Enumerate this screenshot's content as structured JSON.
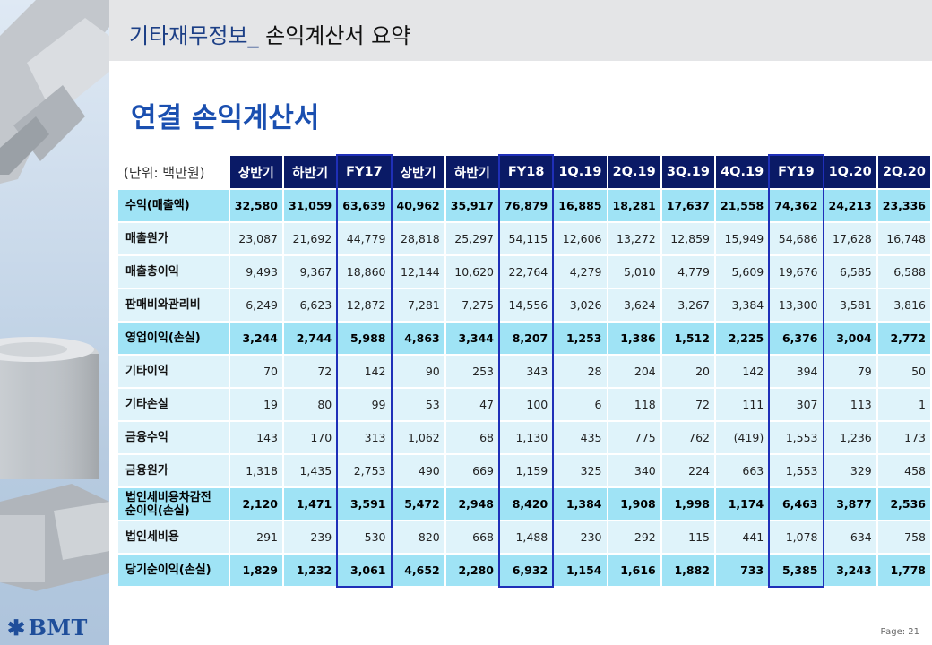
{
  "header": {
    "title_main": "기타재무정보_",
    "title_sub": " 손익계산서 요약"
  },
  "section_title": "연결 손익계산서",
  "unit_label": "(단위: 백만원)",
  "logo_text": "BMT",
  "page_label": "Page:  21",
  "columns": [
    "상반기",
    "하반기",
    "FY17",
    "상반기",
    "하반기",
    "FY18",
    "1Q.19",
    "2Q.19",
    "3Q.19",
    "4Q.19",
    "FY19",
    "1Q.20",
    "2Q.20"
  ],
  "rows": [
    {
      "label": "수익(매출액)",
      "hl": true,
      "values": [
        "32,580",
        "31,059",
        "63,639",
        "40,962",
        "35,917",
        "76,879",
        "16,885",
        "18,281",
        "17,637",
        "21,558",
        "74,362",
        "24,213",
        "23,336"
      ]
    },
    {
      "label": "매출원가",
      "hl": false,
      "values": [
        "23,087",
        "21,692",
        "44,779",
        "28,818",
        "25,297",
        "54,115",
        "12,606",
        "13,272",
        "12,859",
        "15,949",
        "54,686",
        "17,628",
        "16,748"
      ]
    },
    {
      "label": "매출총이익",
      "hl": false,
      "values": [
        "9,493",
        "9,367",
        "18,860",
        "12,144",
        "10,620",
        "22,764",
        "4,279",
        "5,010",
        "4,779",
        "5,609",
        "19,676",
        "6,585",
        "6,588"
      ]
    },
    {
      "label": "판매비와관리비",
      "hl": false,
      "values": [
        "6,249",
        "6,623",
        "12,872",
        "7,281",
        "7,275",
        "14,556",
        "3,026",
        "3,624",
        "3,267",
        "3,384",
        "13,300",
        "3,581",
        "3,816"
      ]
    },
    {
      "label": "영업이익(손실)",
      "hl": true,
      "values": [
        "3,244",
        "2,744",
        "5,988",
        "4,863",
        "3,344",
        "8,207",
        "1,253",
        "1,386",
        "1,512",
        "2,225",
        "6,376",
        "3,004",
        "2,772"
      ]
    },
    {
      "label": "기타이익",
      "hl": false,
      "values": [
        "70",
        "72",
        "142",
        "90",
        "253",
        "343",
        "28",
        "204",
        "20",
        "142",
        "394",
        "79",
        "50"
      ]
    },
    {
      "label": "기타손실",
      "hl": false,
      "values": [
        "19",
        "80",
        "99",
        "53",
        "47",
        "100",
        "6",
        "118",
        "72",
        "111",
        "307",
        "113",
        "1"
      ]
    },
    {
      "label": "금융수익",
      "hl": false,
      "values": [
        "143",
        "170",
        "313",
        "1,062",
        "68",
        "1,130",
        "435",
        "775",
        "762",
        "(419)",
        "1,553",
        "1,236",
        "173"
      ]
    },
    {
      "label": "금융원가",
      "hl": false,
      "values": [
        "1,318",
        "1,435",
        "2,753",
        "490",
        "669",
        "1,159",
        "325",
        "340",
        "224",
        "663",
        "1,553",
        "329",
        "458"
      ]
    },
    {
      "label": "법인세비용차감전\n순이익(손실)",
      "hl": true,
      "values": [
        "2,120",
        "1,471",
        "3,591",
        "5,472",
        "2,948",
        "8,420",
        "1,384",
        "1,908",
        "1,998",
        "1,174",
        "6,463",
        "3,877",
        "2,536"
      ]
    },
    {
      "label": "법인세비용",
      "hl": false,
      "values": [
        "291",
        "239",
        "530",
        "820",
        "668",
        "1,488",
        "230",
        "292",
        "115",
        "441",
        "1,078",
        "634",
        "758"
      ]
    },
    {
      "label": "당기순이익(손실)",
      "hl": true,
      "values": [
        "1,829",
        "1,232",
        "3,061",
        "4,652",
        "2,280",
        "6,932",
        "1,154",
        "1,616",
        "1,882",
        "733",
        "5,385",
        "3,243",
        "1,778"
      ]
    }
  ],
  "colors": {
    "header_cell": "#0a1a66",
    "highlight_row": "#9fe3f5",
    "normal_row": "#dff3fa",
    "fy_box": "#1f2fb8",
    "title_blue": "#1a4fb0"
  }
}
